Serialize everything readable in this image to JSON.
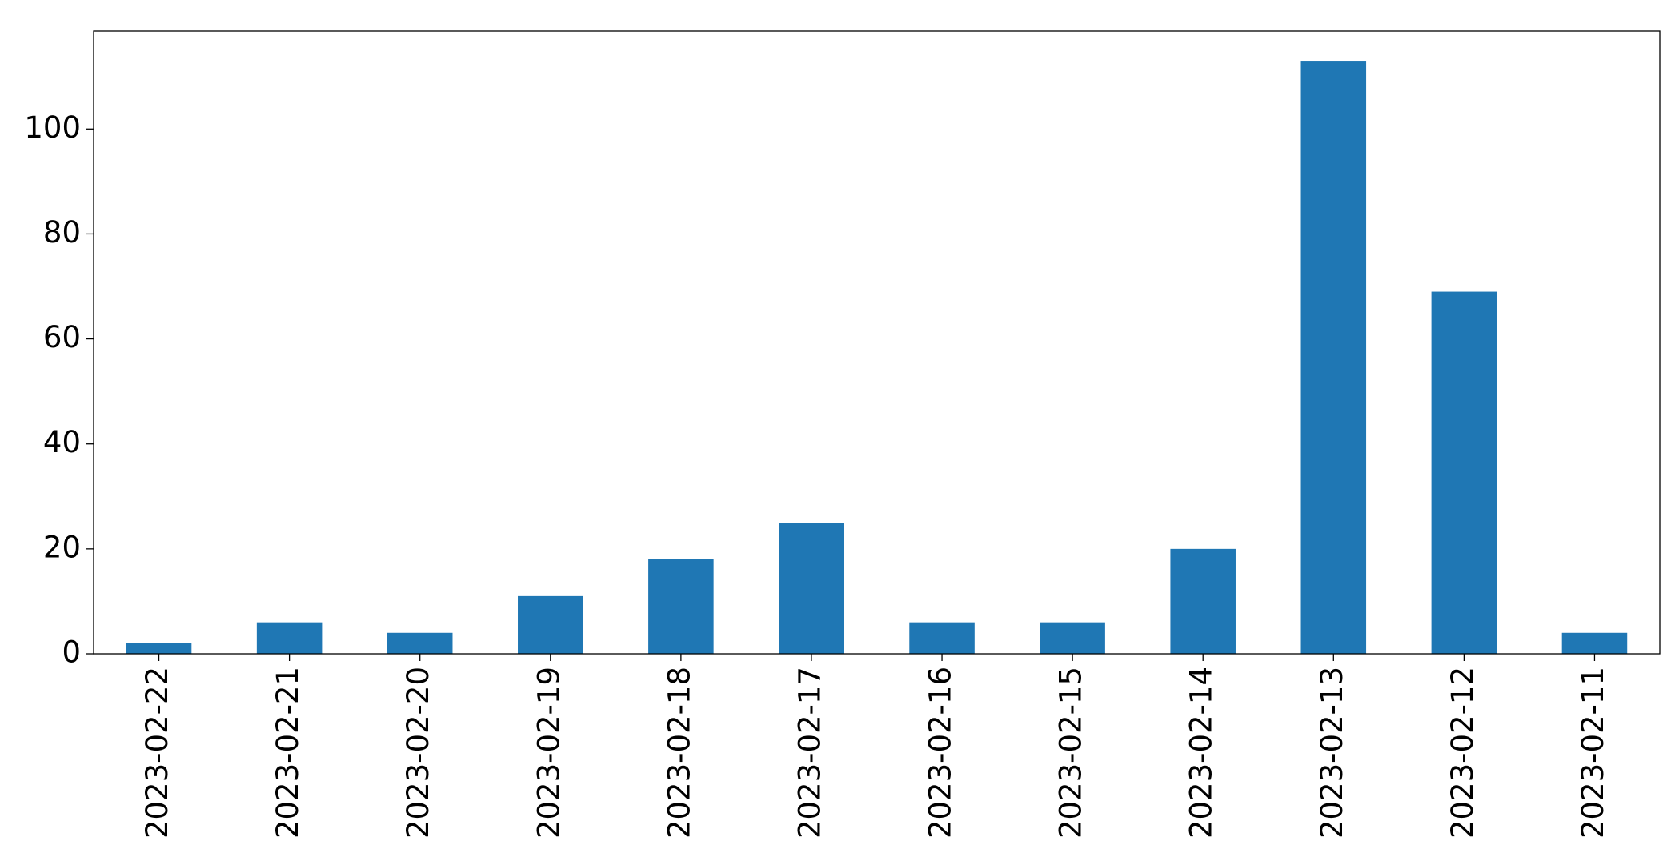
{
  "chart_data": {
    "type": "bar",
    "categories": [
      "2023-02-22",
      "2023-02-21",
      "2023-02-20",
      "2023-02-19",
      "2023-02-18",
      "2023-02-17",
      "2023-02-16",
      "2023-02-15",
      "2023-02-14",
      "2023-02-13",
      "2023-02-12",
      "2023-02-11"
    ],
    "values": [
      2,
      6,
      4,
      11,
      18,
      25,
      6,
      6,
      20,
      113,
      69,
      4
    ],
    "color": "#1f77b4",
    "ylim": [
      0,
      118.65
    ],
    "yticks": [
      0,
      20,
      40,
      60,
      80,
      100
    ],
    "grid": false
  }
}
